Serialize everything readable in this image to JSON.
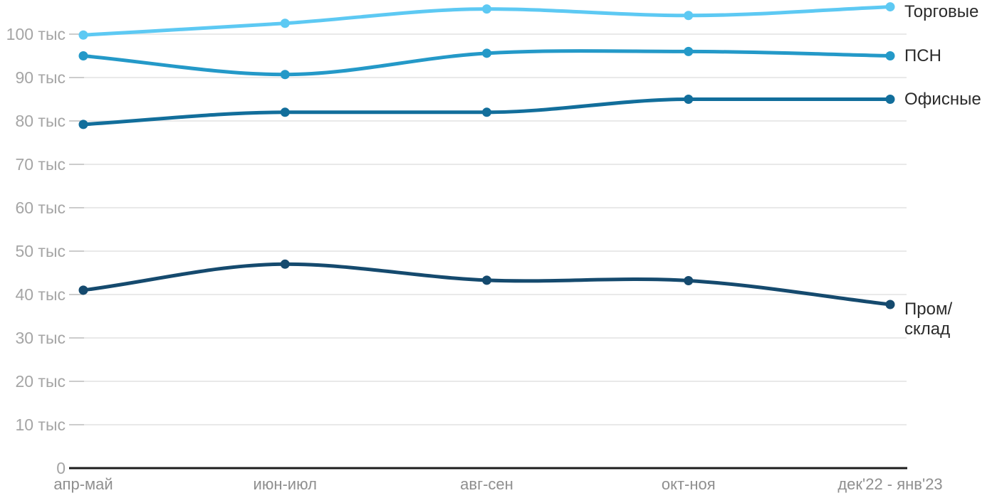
{
  "chart_data": {
    "type": "line",
    "title": "",
    "x_categories": [
      "апр-май",
      "июн-июл",
      "авг-сен",
      "окт-ноя",
      "дек'22 - янв'23"
    ],
    "y_ticks": [
      {
        "value": 0,
        "label": "0"
      },
      {
        "value": 10,
        "label": "10 тыс"
      },
      {
        "value": 20,
        "label": "20 тыс"
      },
      {
        "value": 30,
        "label": "30 тыс"
      },
      {
        "value": 40,
        "label": "40 тыс"
      },
      {
        "value": 50,
        "label": "50 тыс"
      },
      {
        "value": 60,
        "label": "60 тыс"
      },
      {
        "value": 70,
        "label": "70 тыс"
      },
      {
        "value": 80,
        "label": "80 тыс"
      },
      {
        "value": 90,
        "label": "90 тыс"
      },
      {
        "value": 100,
        "label": "100 тыс"
      }
    ],
    "ylim": [
      0,
      110
    ],
    "y_unit": "тыс",
    "grid": "horizontal-only",
    "legend_position": "right-end-labels",
    "series": [
      {
        "id": "torgovye",
        "name": "Торговые",
        "label_lines": [
          "Торговые"
        ],
        "color": "#5dc9f3",
        "values": [
          99.8,
          102.5,
          105.8,
          104.3,
          106.3
        ]
      },
      {
        "id": "psn",
        "name": "ПСН",
        "label_lines": [
          "ПСН"
        ],
        "color": "#2499c8",
        "values": [
          95.0,
          90.7,
          95.6,
          96.0,
          95.0
        ]
      },
      {
        "id": "ofisnye",
        "name": "Офисные",
        "label_lines": [
          "Офисные"
        ],
        "color": "#126e9b",
        "values": [
          79.2,
          82.0,
          82.0,
          85.0,
          85.0
        ]
      },
      {
        "id": "prom-sklad",
        "name": "Пром/склад",
        "label_lines": [
          "Пром/",
          "склад"
        ],
        "color": "#154a6e",
        "values": [
          41.0,
          47.0,
          43.3,
          43.2,
          37.7
        ]
      }
    ],
    "colors": {
      "axis_line": "#1c1c1c",
      "gridline": "#e9e9e9",
      "tick_dash": "#cccccc",
      "y_label_text": "#a5a5a5",
      "x_label_text": "#8f8f8f",
      "series_label_text": "#2b2b2b",
      "background": "#ffffff"
    }
  }
}
